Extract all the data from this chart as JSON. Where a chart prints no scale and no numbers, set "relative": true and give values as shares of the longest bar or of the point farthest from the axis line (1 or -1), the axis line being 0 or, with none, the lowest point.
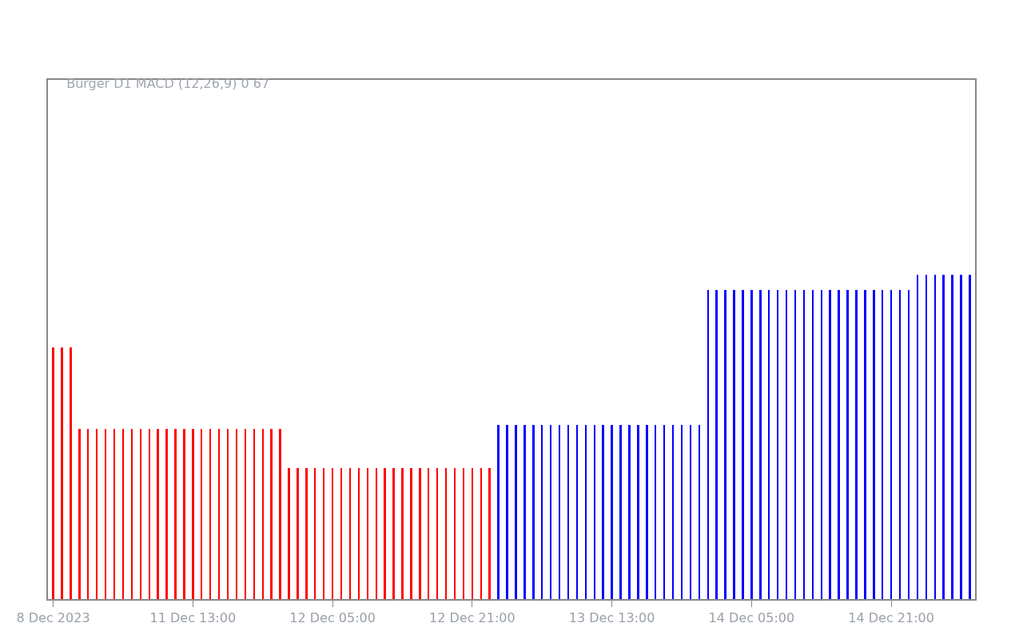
{
  "chart_data": {
    "type": "bar",
    "title": "Burger D1 MACD (12,26,9) 0 67",
    "relative": true,
    "grid": false,
    "categories": [
      "8 Dec 2023",
      null,
      null,
      null,
      null,
      null,
      null,
      null,
      null,
      null,
      null,
      null,
      null,
      null,
      null,
      null,
      "11 Dec 13:00",
      null,
      null,
      null,
      null,
      null,
      null,
      null,
      null,
      null,
      null,
      null,
      null,
      null,
      null,
      null,
      "12 Dec 05:00",
      null,
      null,
      null,
      null,
      null,
      null,
      null,
      null,
      null,
      null,
      null,
      null,
      null,
      null,
      null,
      "12 Dec 21:00",
      null,
      null,
      null,
      null,
      null,
      null,
      null,
      null,
      null,
      null,
      null,
      null,
      null,
      null,
      null,
      "13 Dec 13:00",
      null,
      null,
      null,
      null,
      null,
      null,
      null,
      null,
      null,
      null,
      null,
      null,
      null,
      null,
      null,
      "14 Dec 05:00",
      null,
      null,
      null,
      null,
      null,
      null,
      null,
      null,
      null,
      null,
      null,
      null,
      null,
      null,
      null,
      "14 Dec 21:00",
      null,
      null,
      null,
      null,
      null,
      null,
      null,
      null,
      null
    ],
    "values": [
      0.776,
      0.776,
      0.776,
      0.524,
      0.524,
      0.524,
      0.524,
      0.524,
      0.524,
      0.524,
      0.524,
      0.524,
      0.524,
      0.524,
      0.524,
      0.524,
      0.524,
      0.524,
      0.524,
      0.524,
      0.524,
      0.524,
      0.524,
      0.524,
      0.524,
      0.524,
      0.524,
      0.404,
      0.404,
      0.404,
      0.404,
      0.404,
      0.404,
      0.404,
      0.404,
      0.404,
      0.404,
      0.404,
      0.404,
      0.404,
      0.404,
      0.404,
      0.404,
      0.404,
      0.404,
      0.404,
      0.404,
      0.404,
      0.404,
      0.404,
      0.404,
      0.536,
      0.536,
      0.536,
      0.536,
      0.536,
      0.536,
      0.536,
      0.536,
      0.536,
      0.536,
      0.536,
      0.536,
      0.536,
      0.536,
      0.536,
      0.536,
      0.536,
      0.536,
      0.536,
      0.536,
      0.536,
      0.536,
      0.536,
      0.536,
      0.952,
      0.952,
      0.952,
      0.952,
      0.952,
      0.952,
      0.952,
      0.952,
      0.952,
      0.952,
      0.952,
      0.952,
      0.952,
      0.952,
      0.952,
      0.952,
      0.952,
      0.952,
      0.952,
      0.952,
      0.952,
      0.952,
      0.952,
      0.952,
      1,
      1,
      1,
      1,
      1,
      1,
      1
    ],
    "colors": [
      "#ff0000",
      "#ff0000",
      "#ff0000",
      "#ff0000",
      "#ff0000",
      "#ff0000",
      "#ff0000",
      "#ff0000",
      "#ff0000",
      "#ff0000",
      "#ff0000",
      "#ff0000",
      "#ff0000",
      "#ff0000",
      "#ff0000",
      "#ff0000",
      "#ff0000",
      "#ff0000",
      "#ff0000",
      "#ff0000",
      "#ff0000",
      "#ff0000",
      "#ff0000",
      "#ff0000",
      "#ff0000",
      "#ff0000",
      "#ff0000",
      "#ff0000",
      "#ff0000",
      "#ff0000",
      "#ff0000",
      "#ff0000",
      "#ff0000",
      "#ff0000",
      "#ff0000",
      "#ff0000",
      "#ff0000",
      "#ff0000",
      "#ff0000",
      "#ff0000",
      "#ff0000",
      "#ff0000",
      "#ff0000",
      "#ff0000",
      "#ff0000",
      "#ff0000",
      "#ff0000",
      "#ff0000",
      "#ff0000",
      "#ff0000",
      "#ff0000",
      "#0000ff",
      "#0000ff",
      "#0000ff",
      "#0000ff",
      "#0000ff",
      "#0000ff",
      "#0000ff",
      "#0000ff",
      "#0000ff",
      "#0000ff",
      "#0000ff",
      "#0000ff",
      "#0000ff",
      "#0000ff",
      "#0000ff",
      "#0000ff",
      "#0000ff",
      "#0000ff",
      "#0000ff",
      "#0000ff",
      "#0000ff",
      "#0000ff",
      "#0000ff",
      "#0000ff",
      "#0000ff",
      "#0000ff",
      "#0000ff",
      "#0000ff",
      "#0000ff",
      "#0000ff",
      "#0000ff",
      "#0000ff",
      "#0000ff",
      "#0000ff",
      "#0000ff",
      "#0000ff",
      "#0000ff",
      "#0000ff",
      "#0000ff",
      "#0000ff",
      "#0000ff",
      "#0000ff",
      "#0000ff",
      "#0000ff",
      "#0000ff",
      "#0000ff",
      "#0000ff",
      "#0000ff",
      "#0000ff",
      "#0000ff",
      "#0000ff",
      "#0000ff",
      "#0000ff",
      "#0000ff",
      "#0000ff"
    ]
  }
}
